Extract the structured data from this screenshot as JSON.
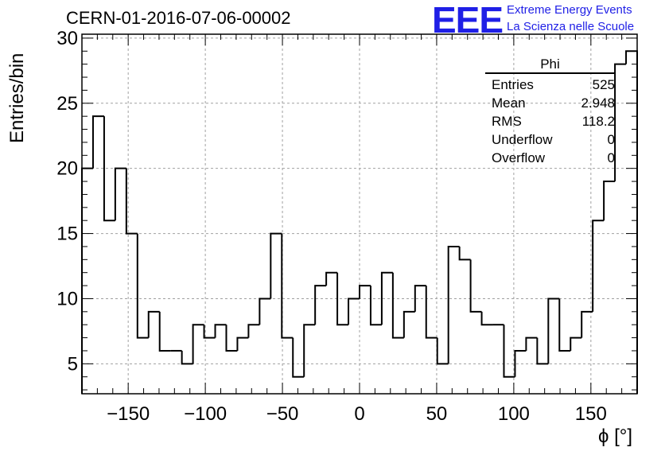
{
  "title": "CERN-01-2016-07-06-00002",
  "logo": {
    "text": "EEE",
    "line1": "Extreme Energy Events",
    "line2": "La Scienza nelle Scuole",
    "color": "#1f1fe6"
  },
  "stats_box": {
    "title": "Phi",
    "rows": [
      {
        "label": "Entries",
        "value": "525"
      },
      {
        "label": "Mean",
        "value": "2.948"
      },
      {
        "label": "RMS",
        "value": "118.2"
      },
      {
        "label": "Underflow",
        "value": "0"
      },
      {
        "label": "Overflow",
        "value": "0"
      }
    ]
  },
  "chart_data": {
    "type": "bar",
    "histogram": true,
    "title": "CERN-01-2016-07-06-00002",
    "xlabel": "ϕ [°]",
    "ylabel": "Entries/bin",
    "xlim": [
      -180,
      180
    ],
    "ylim": [
      2.7,
      30.3
    ],
    "bin_width": 7.2,
    "bin_low_edges": [
      -180,
      -172.8,
      -165.6,
      -158.4,
      -151.2,
      -144,
      -136.8,
      -129.6,
      -122.4,
      -115.2,
      -108,
      -100.8,
      -93.6,
      -86.4,
      -79.2,
      -72,
      -64.8,
      -57.6,
      -50.4,
      -43.2,
      -36,
      -28.8,
      -21.6,
      -14.4,
      -7.2,
      0,
      7.2,
      14.4,
      21.6,
      28.8,
      36,
      43.2,
      50.4,
      57.6,
      64.8,
      72,
      79.2,
      86.4,
      93.6,
      100.8,
      108,
      115.2,
      122.4,
      129.6,
      136.8,
      144,
      151.2,
      158.4,
      165.6,
      172.8
    ],
    "values": [
      20,
      24,
      16,
      20,
      15,
      7,
      9,
      6,
      6,
      5,
      8,
      7,
      8,
      6,
      7,
      8,
      10,
      15,
      7,
      4,
      8,
      11,
      12,
      8,
      10,
      11,
      8,
      12,
      7,
      9,
      11,
      7,
      5,
      14,
      13,
      9,
      8,
      8,
      4,
      6,
      7,
      5,
      10,
      6,
      7,
      9,
      16,
      19,
      28,
      29
    ],
    "x_ticks": [
      -150,
      -100,
      -50,
      0,
      50,
      100,
      150
    ],
    "x_tick_labels": [
      "−150",
      "−100",
      "−50",
      "0",
      "50",
      "100",
      "150"
    ],
    "y_ticks": [
      5,
      10,
      15,
      20,
      25,
      30
    ],
    "grid": true,
    "line_color": "#000000"
  }
}
